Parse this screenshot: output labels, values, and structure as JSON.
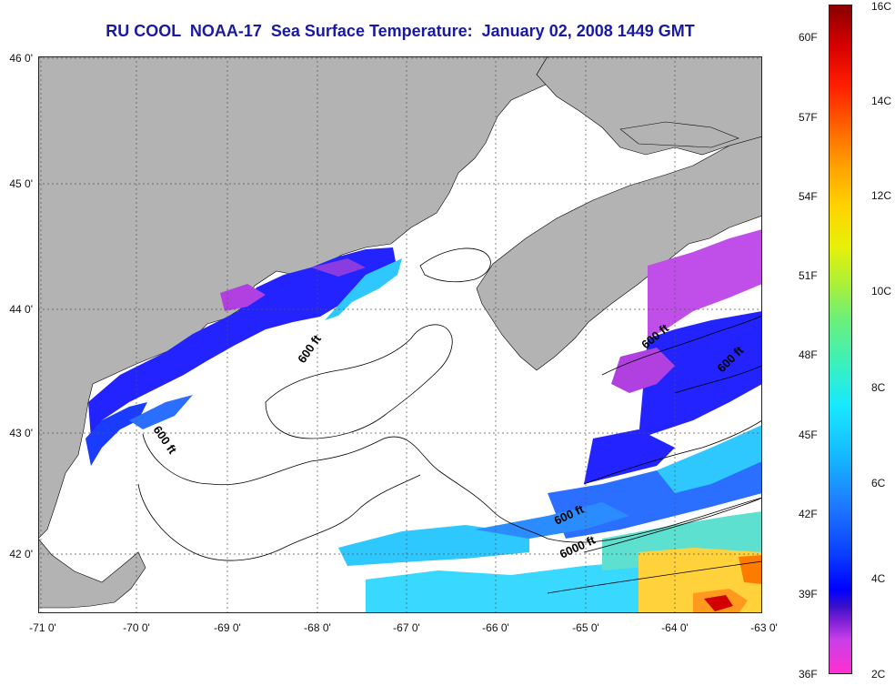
{
  "title": "RU COOL  NOAA-17  Sea Surface Temperature:  January 02, 2008 1449 GMT",
  "latitude_labels": [
    "46 0'",
    "45 0'",
    "44 0'",
    "43 0'",
    "42 0'"
  ],
  "longitude_labels": [
    "-71 0'",
    "-70 0'",
    "-69 0'",
    "-68 0'",
    "-67 0'",
    "-66 0'",
    "-65 0'",
    "-64 0'",
    "-63 0'"
  ],
  "contour_labels": [
    "600 ft",
    "600 ft",
    "600 ft",
    "600 ft",
    "600 ft",
    "6000 ft"
  ],
  "colorbar": {
    "fahrenheit_labels": [
      "60F",
      "57F",
      "54F",
      "51F",
      "48F",
      "45F",
      "42F",
      "39F",
      "36F"
    ],
    "celsius_labels": [
      "16C",
      "14C",
      "12C",
      "10C",
      "8C",
      "6C",
      "4C",
      "2C"
    ]
  },
  "colors": {
    "land": "#b3b3b3",
    "title": "#1a1aa0",
    "cold": "#2323ff",
    "purple": "#b040e0",
    "cyan": "#2ec8ff",
    "warm": "#ffd23c",
    "hot": "#d20000"
  }
}
